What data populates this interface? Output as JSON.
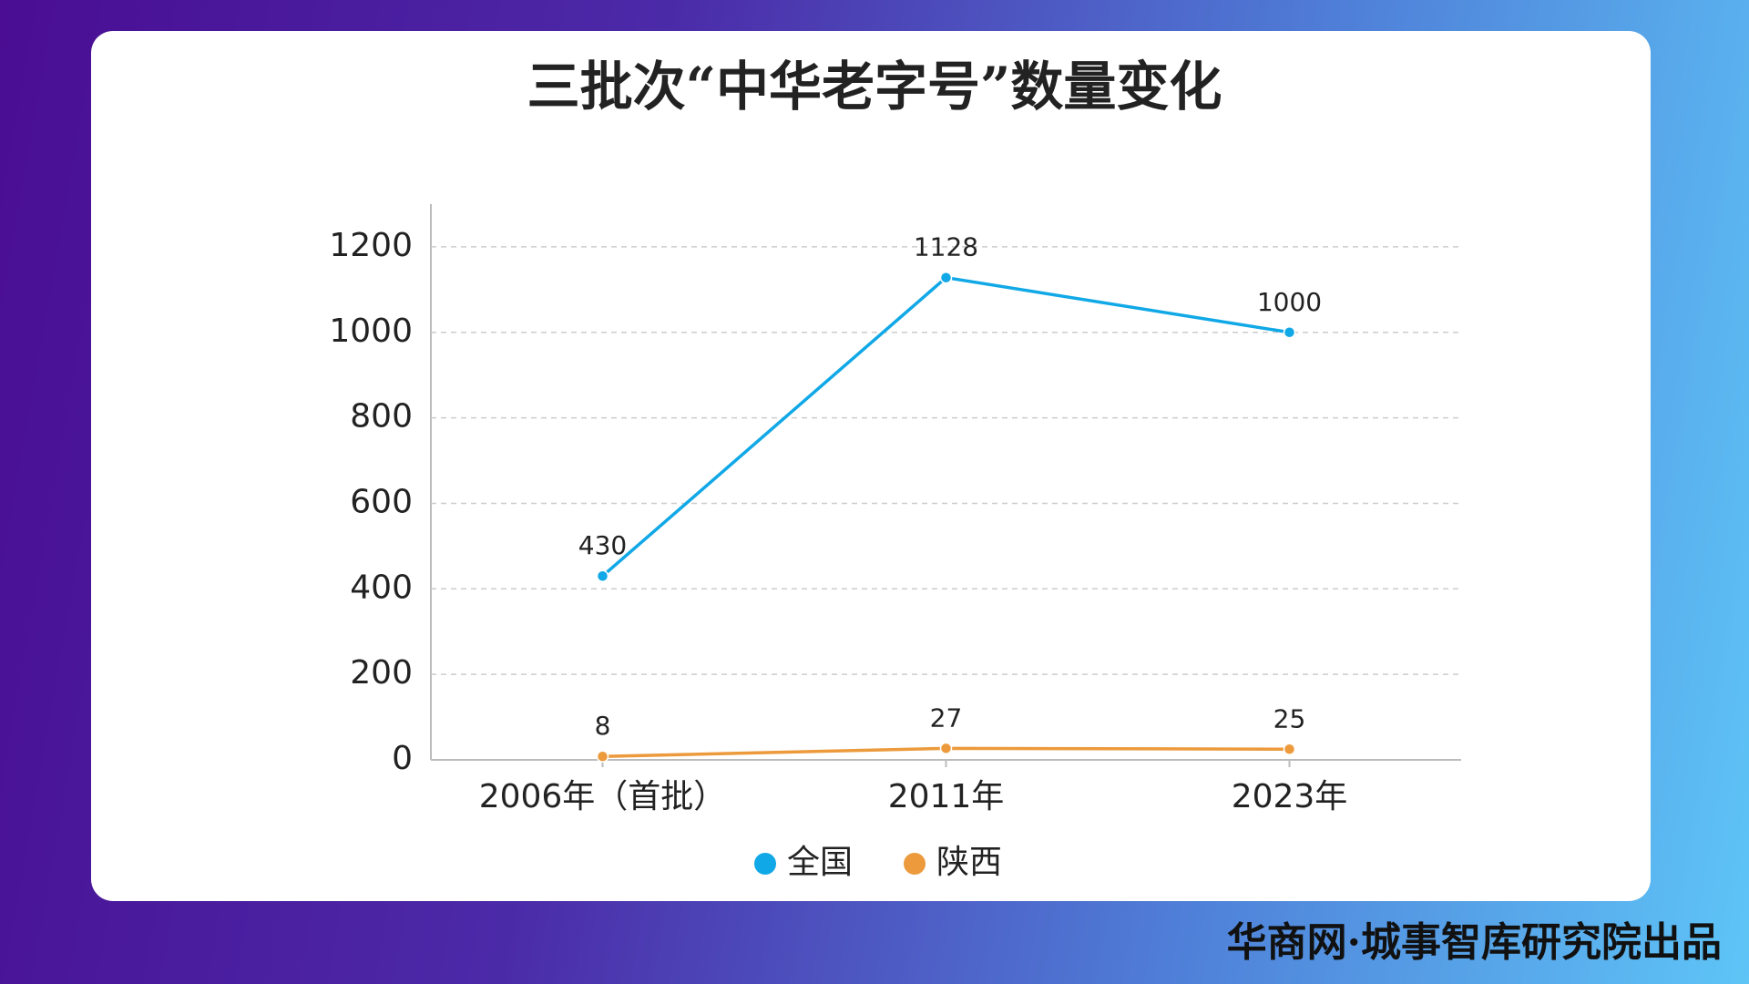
{
  "chart_data": {
    "type": "line",
    "title": "三批次“中华老字号”数量变化",
    "categories": [
      "2006年（首批）",
      "2011年",
      "2023年"
    ],
    "series": [
      {
        "name": "全国",
        "color": "#10a8e6",
        "values": [
          430,
          1128,
          1000
        ]
      },
      {
        "name": "陕西",
        "color": "#ec9a3c",
        "values": [
          8,
          27,
          25
        ]
      }
    ],
    "ylim": [
      0,
      1300
    ],
    "yticks": [
      0,
      200,
      400,
      600,
      800,
      1000,
      1200
    ],
    "grid": true,
    "legend": "bottom"
  },
  "footer": "华商网·城事智库研究院出品"
}
